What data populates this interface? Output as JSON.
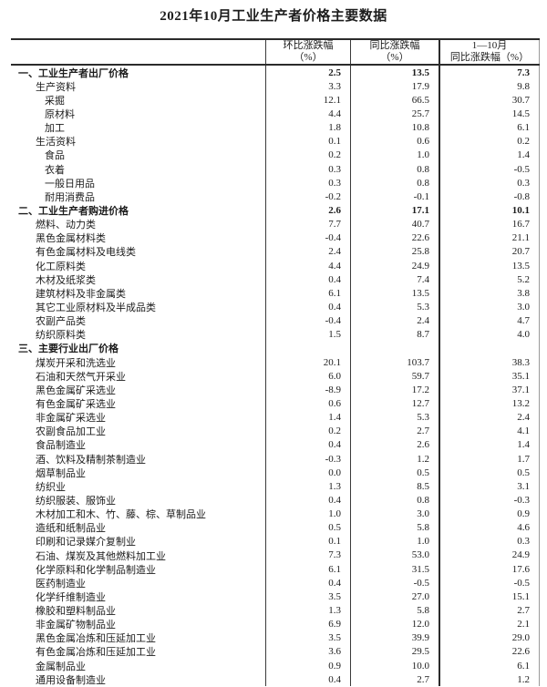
{
  "page": {
    "title": "2021年10月工业生产者价格主要数据"
  },
  "table": {
    "header": {
      "mom": [
        "环比涨跌幅",
        "（%）"
      ],
      "yoy": [
        "同比涨跌幅",
        "（%）"
      ],
      "ytd": [
        "1—10月",
        "同比涨跌幅（%）"
      ]
    },
    "rows": [
      {
        "label": "一、工业生产者出厂价格",
        "indent": 0,
        "bold": true,
        "mom": "2.5",
        "yoy": "13.5",
        "ytd": "7.3"
      },
      {
        "label": "生产资料",
        "indent": 1,
        "bold": false,
        "mom": "3.3",
        "yoy": "17.9",
        "ytd": "9.8"
      },
      {
        "label": "采掘",
        "indent": 2,
        "bold": false,
        "mom": "12.1",
        "yoy": "66.5",
        "ytd": "30.7"
      },
      {
        "label": "原材料",
        "indent": 2,
        "bold": false,
        "mom": "4.4",
        "yoy": "25.7",
        "ytd": "14.5"
      },
      {
        "label": "加工",
        "indent": 2,
        "bold": false,
        "mom": "1.8",
        "yoy": "10.8",
        "ytd": "6.1"
      },
      {
        "label": "生活资料",
        "indent": 1,
        "bold": false,
        "mom": "0.1",
        "yoy": "0.6",
        "ytd": "0.2"
      },
      {
        "label": "食品",
        "indent": 2,
        "bold": false,
        "mom": "0.2",
        "yoy": "1.0",
        "ytd": "1.4"
      },
      {
        "label": "衣着",
        "indent": 2,
        "bold": false,
        "mom": "0.3",
        "yoy": "0.8",
        "ytd": "-0.5"
      },
      {
        "label": "一般日用品",
        "indent": 2,
        "bold": false,
        "mom": "0.3",
        "yoy": "0.8",
        "ytd": "0.3"
      },
      {
        "label": "耐用消费品",
        "indent": 2,
        "bold": false,
        "mom": "-0.2",
        "yoy": "-0.1",
        "ytd": "-0.8"
      },
      {
        "label": "二、工业生产者购进价格",
        "indent": 0,
        "bold": true,
        "mom": "2.6",
        "yoy": "17.1",
        "ytd": "10.1"
      },
      {
        "label": "燃料、动力类",
        "indent": 1,
        "bold": false,
        "mom": "7.7",
        "yoy": "40.7",
        "ytd": "16.7"
      },
      {
        "label": "黑色金属材料类",
        "indent": 1,
        "bold": false,
        "mom": "-0.4",
        "yoy": "22.6",
        "ytd": "21.1"
      },
      {
        "label": "有色金属材料及电线类",
        "indent": 1,
        "bold": false,
        "mom": "2.4",
        "yoy": "25.8",
        "ytd": "20.7"
      },
      {
        "label": "化工原料类",
        "indent": 1,
        "bold": false,
        "mom": "4.4",
        "yoy": "24.9",
        "ytd": "13.5"
      },
      {
        "label": "木材及纸浆类",
        "indent": 1,
        "bold": false,
        "mom": "0.4",
        "yoy": "7.4",
        "ytd": "5.2"
      },
      {
        "label": "建筑材料及非金属类",
        "indent": 1,
        "bold": false,
        "mom": "6.1",
        "yoy": "13.5",
        "ytd": "3.8"
      },
      {
        "label": "其它工业原材料及半成品类",
        "indent": 1,
        "bold": false,
        "mom": "0.4",
        "yoy": "5.3",
        "ytd": "3.0"
      },
      {
        "label": "农副产品类",
        "indent": 1,
        "bold": false,
        "mom": "-0.4",
        "yoy": "2.4",
        "ytd": "4.7"
      },
      {
        "label": "纺织原料类",
        "indent": 1,
        "bold": false,
        "mom": "1.5",
        "yoy": "8.7",
        "ytd": "4.0"
      },
      {
        "label": "三、主要行业出厂价格",
        "indent": 0,
        "bold": true,
        "mom": "",
        "yoy": "",
        "ytd": ""
      },
      {
        "label": "煤炭开采和洗选业",
        "indent": 1,
        "bold": false,
        "mom": "20.1",
        "yoy": "103.7",
        "ytd": "38.3"
      },
      {
        "label": "石油和天然气开采业",
        "indent": 1,
        "bold": false,
        "mom": "6.0",
        "yoy": "59.7",
        "ytd": "35.1"
      },
      {
        "label": "黑色金属矿采选业",
        "indent": 1,
        "bold": false,
        "mom": "-8.9",
        "yoy": "17.2",
        "ytd": "37.1"
      },
      {
        "label": "有色金属矿采选业",
        "indent": 1,
        "bold": false,
        "mom": "0.6",
        "yoy": "12.7",
        "ytd": "13.2"
      },
      {
        "label": "非金属矿采选业",
        "indent": 1,
        "bold": false,
        "mom": "1.4",
        "yoy": "5.3",
        "ytd": "2.4"
      },
      {
        "label": "农副食品加工业",
        "indent": 1,
        "bold": false,
        "mom": "0.2",
        "yoy": "2.7",
        "ytd": "4.1"
      },
      {
        "label": "食品制造业",
        "indent": 1,
        "bold": false,
        "mom": "0.4",
        "yoy": "2.6",
        "ytd": "1.4"
      },
      {
        "label": "酒、饮料及精制茶制造业",
        "indent": 1,
        "bold": false,
        "mom": "-0.3",
        "yoy": "1.2",
        "ytd": "1.7"
      },
      {
        "label": "烟草制品业",
        "indent": 1,
        "bold": false,
        "mom": "0.0",
        "yoy": "0.5",
        "ytd": "0.5"
      },
      {
        "label": "纺织业",
        "indent": 1,
        "bold": false,
        "mom": "1.3",
        "yoy": "8.5",
        "ytd": "3.1"
      },
      {
        "label": "纺织服装、服饰业",
        "indent": 1,
        "bold": false,
        "mom": "0.4",
        "yoy": "0.8",
        "ytd": "-0.3"
      },
      {
        "label": "木材加工和木、竹、藤、棕、草制品业",
        "indent": 1,
        "bold": false,
        "mom": "1.0",
        "yoy": "3.0",
        "ytd": "0.9"
      },
      {
        "label": "造纸和纸制品业",
        "indent": 1,
        "bold": false,
        "mom": "0.5",
        "yoy": "5.8",
        "ytd": "4.6"
      },
      {
        "label": "印刷和记录媒介复制业",
        "indent": 1,
        "bold": false,
        "mom": "0.1",
        "yoy": "1.0",
        "ytd": "0.3"
      },
      {
        "label": "石油、煤炭及其他燃料加工业",
        "indent": 1,
        "bold": false,
        "mom": "7.3",
        "yoy": "53.0",
        "ytd": "24.9"
      },
      {
        "label": "化学原料和化学制品制造业",
        "indent": 1,
        "bold": false,
        "mom": "6.1",
        "yoy": "31.5",
        "ytd": "17.6"
      },
      {
        "label": "医药制造业",
        "indent": 1,
        "bold": false,
        "mom": "0.4",
        "yoy": "-0.5",
        "ytd": "-0.5"
      },
      {
        "label": "化学纤维制造业",
        "indent": 1,
        "bold": false,
        "mom": "3.5",
        "yoy": "27.0",
        "ytd": "15.1"
      },
      {
        "label": "橡胶和塑料制品业",
        "indent": 1,
        "bold": false,
        "mom": "1.3",
        "yoy": "5.8",
        "ytd": "2.7"
      },
      {
        "label": "非金属矿物制品业",
        "indent": 1,
        "bold": false,
        "mom": "6.9",
        "yoy": "12.0",
        "ytd": "2.1"
      },
      {
        "label": "黑色金属冶炼和压延加工业",
        "indent": 1,
        "bold": false,
        "mom": "3.5",
        "yoy": "39.9",
        "ytd": "29.0"
      },
      {
        "label": "有色金属冶炼和压延加工业",
        "indent": 1,
        "bold": false,
        "mom": "3.6",
        "yoy": "29.5",
        "ytd": "22.6"
      },
      {
        "label": "金属制品业",
        "indent": 1,
        "bold": false,
        "mom": "0.9",
        "yoy": "10.0",
        "ytd": "6.1"
      },
      {
        "label": "通用设备制造业",
        "indent": 1,
        "bold": false,
        "mom": "0.4",
        "yoy": "2.7",
        "ytd": "1.2"
      }
    ]
  },
  "colors": {
    "text": "#1c1c1c",
    "border_strong": "#2b2b2b",
    "border_thin": "#3a3a3a",
    "border_faint": "#9a9a9a",
    "background": "#ffffff"
  }
}
